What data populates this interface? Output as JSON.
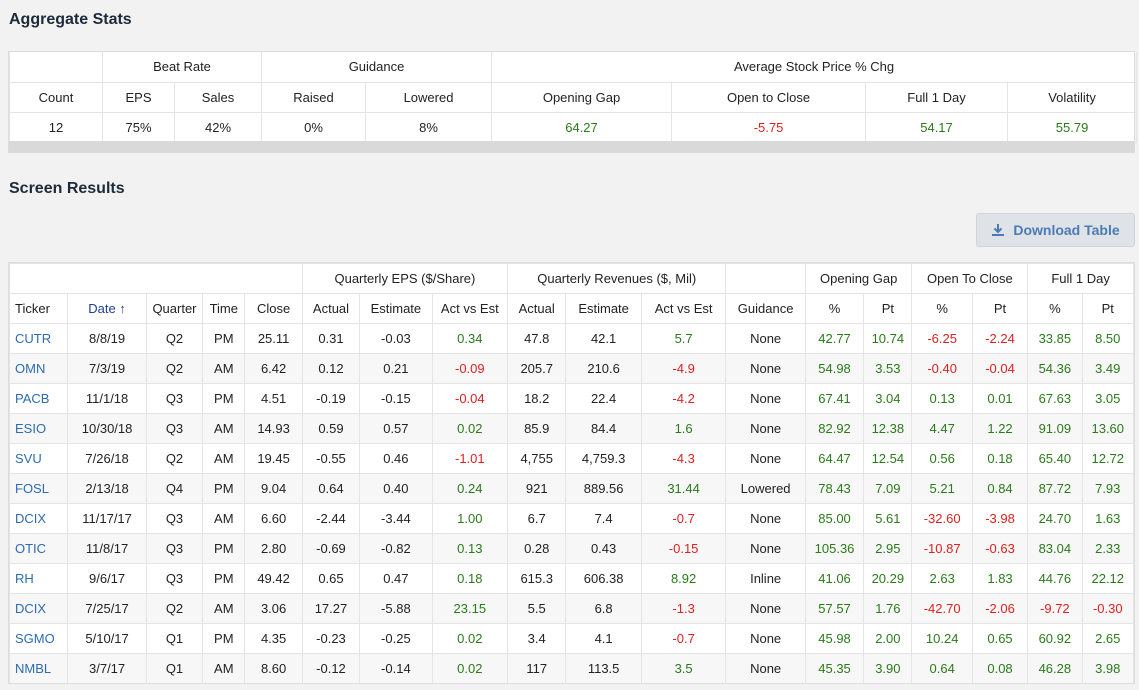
{
  "aggregate": {
    "title": "Aggregate Stats",
    "group_headers": {
      "beat_rate": "Beat Rate",
      "guidance": "Guidance",
      "avg_price": "Average Stock Price % Chg"
    },
    "headers": {
      "count": "Count",
      "eps": "EPS",
      "sales": "Sales",
      "raised": "Raised",
      "lowered": "Lowered",
      "opening_gap": "Opening Gap",
      "open_to_close": "Open to Close",
      "full_1_day": "Full 1 Day",
      "volatility": "Volatility"
    },
    "values": {
      "count": "12",
      "eps": "75%",
      "sales": "42%",
      "raised": "0%",
      "lowered": "8%",
      "opening_gap": "64.27",
      "open_to_close": "-5.75",
      "full_1_day": "54.17",
      "volatility": "55.79"
    }
  },
  "results": {
    "title": "Screen Results",
    "download_label": "Download Table",
    "download_icon": "download-icon",
    "group_headers": {
      "eps": "Quarterly EPS ($/Share)",
      "rev": "Quarterly Revenues ($, Mil)",
      "gap": "Opening Gap",
      "otc": "Open To Close",
      "full": "Full 1 Day"
    },
    "columns": [
      "Ticker",
      "Date ↑",
      "Quarter",
      "Time",
      "Close",
      "Actual",
      "Estimate",
      "Act vs Est",
      "Actual",
      "Estimate",
      "Act vs Est",
      "Guidance",
      "%",
      "Pt",
      "%",
      "Pt",
      "%",
      "Pt"
    ],
    "rows": [
      [
        "CUTR",
        "8/8/19",
        "Q2",
        "PM",
        "25.11",
        "0.31",
        "-0.03",
        "0.34",
        "47.8",
        "42.1",
        "5.7",
        "None",
        "42.77",
        "10.74",
        "-6.25",
        "-2.24",
        "33.85",
        "8.50"
      ],
      [
        "OMN",
        "7/3/19",
        "Q2",
        "AM",
        "6.42",
        "0.12",
        "0.21",
        "-0.09",
        "205.7",
        "210.6",
        "-4.9",
        "None",
        "54.98",
        "3.53",
        "-0.40",
        "-0.04",
        "54.36",
        "3.49"
      ],
      [
        "PACB",
        "11/1/18",
        "Q3",
        "PM",
        "4.51",
        "-0.19",
        "-0.15",
        "-0.04",
        "18.2",
        "22.4",
        "-4.2",
        "None",
        "67.41",
        "3.04",
        "0.13",
        "0.01",
        "67.63",
        "3.05"
      ],
      [
        "ESIO",
        "10/30/18",
        "Q3",
        "AM",
        "14.93",
        "0.59",
        "0.57",
        "0.02",
        "85.9",
        "84.4",
        "1.6",
        "None",
        "82.92",
        "12.38",
        "4.47",
        "1.22",
        "91.09",
        "13.60"
      ],
      [
        "SVU",
        "7/26/18",
        "Q2",
        "AM",
        "19.45",
        "-0.55",
        "0.46",
        "-1.01",
        "4,755",
        "4,759.3",
        "-4.3",
        "None",
        "64.47",
        "12.54",
        "0.56",
        "0.18",
        "65.40",
        "12.72"
      ],
      [
        "FOSL",
        "2/13/18",
        "Q4",
        "PM",
        "9.04",
        "0.64",
        "0.40",
        "0.24",
        "921",
        "889.56",
        "31.44",
        "Lowered",
        "78.43",
        "7.09",
        "5.21",
        "0.84",
        "87.72",
        "7.93"
      ],
      [
        "DCIX",
        "11/17/17",
        "Q3",
        "AM",
        "6.60",
        "-2.44",
        "-3.44",
        "1.00",
        "6.7",
        "7.4",
        "-0.7",
        "None",
        "85.00",
        "5.61",
        "-32.60",
        "-3.98",
        "24.70",
        "1.63"
      ],
      [
        "OTIC",
        "11/8/17",
        "Q3",
        "PM",
        "2.80",
        "-0.69",
        "-0.82",
        "0.13",
        "0.28",
        "0.43",
        "-0.15",
        "None",
        "105.36",
        "2.95",
        "-10.87",
        "-0.63",
        "83.04",
        "2.33"
      ],
      [
        "RH",
        "9/6/17",
        "Q3",
        "PM",
        "49.42",
        "0.65",
        "0.47",
        "0.18",
        "615.3",
        "606.38",
        "8.92",
        "Inline",
        "41.06",
        "20.29",
        "2.63",
        "1.83",
        "44.76",
        "22.12"
      ],
      [
        "DCIX",
        "7/25/17",
        "Q2",
        "AM",
        "3.06",
        "17.27",
        "-5.88",
        "23.15",
        "5.5",
        "6.8",
        "-1.3",
        "None",
        "57.57",
        "1.76",
        "-42.70",
        "-2.06",
        "-9.72",
        "-0.30"
      ],
      [
        "SGMO",
        "5/10/17",
        "Q1",
        "PM",
        "4.35",
        "-0.23",
        "-0.25",
        "0.02",
        "3.4",
        "4.1",
        "-0.7",
        "None",
        "45.98",
        "2.00",
        "10.24",
        "0.65",
        "60.92",
        "2.65"
      ],
      [
        "NMBL",
        "3/7/17",
        "Q1",
        "AM",
        "8.60",
        "-0.12",
        "-0.14",
        "0.02",
        "117",
        "113.5",
        "3.5",
        "None",
        "45.35",
        "3.90",
        "0.64",
        "0.08",
        "46.28",
        "3.98"
      ]
    ]
  },
  "colors": {
    "positive": "#2a7a1a",
    "negative": "#e02020",
    "link": "#2d6bb3"
  }
}
